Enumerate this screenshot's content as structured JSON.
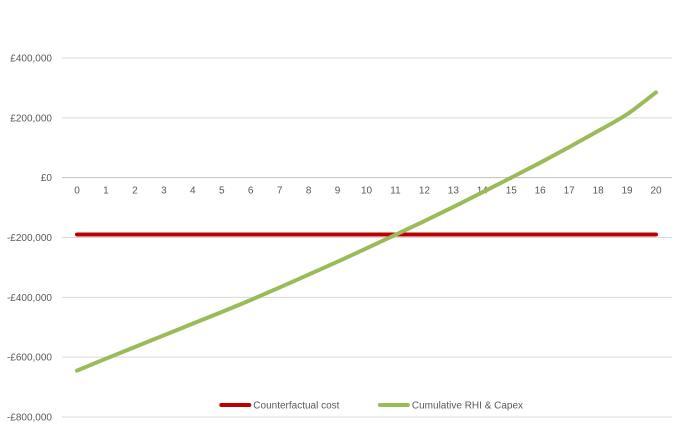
{
  "chart_data": {
    "type": "line",
    "title": "",
    "xlabel": "",
    "ylabel": "",
    "x": [
      0,
      1,
      2,
      3,
      4,
      5,
      6,
      7,
      8,
      9,
      10,
      11,
      12,
      13,
      14,
      15,
      16,
      17,
      18,
      19,
      20
    ],
    "x_tick_labels": [
      "0",
      "1",
      "2",
      "3",
      "4",
      "5",
      "6",
      "7",
      "8",
      "9",
      "10",
      "11",
      "12",
      "13",
      "14",
      "15",
      "16",
      "17",
      "18",
      "19",
      "20"
    ],
    "ylim": [
      -800000,
      400000
    ],
    "y_ticks": [
      400000,
      200000,
      0,
      -200000,
      -400000,
      -600000,
      -800000
    ],
    "y_tick_labels": [
      "£400,000",
      "£200,000",
      "£0",
      "-£200,000",
      "-£400,000",
      "-£600,000",
      "-£800,000"
    ],
    "grid": "horizontal",
    "legend_position": "bottom",
    "series": [
      {
        "name": "Counterfactual cost",
        "color": "#c00000",
        "values": [
          -190000,
          -190000,
          -190000,
          -190000,
          -190000,
          -190000,
          -190000,
          -190000,
          -190000,
          -190000,
          -190000,
          -190000,
          -190000,
          -190000,
          -190000,
          -190000,
          -190000,
          -190000,
          -190000,
          -190000,
          -190000
        ]
      },
      {
        "name": "Cumulative RHI & Capex",
        "color": "#9bbb59",
        "values": [
          -645000,
          -605000,
          -566000,
          -527000,
          -488000,
          -449000,
          -409000,
          -367000,
          -324000,
          -281000,
          -236000,
          -191000,
          -145000,
          -98000,
          -49000,
          0,
          50000,
          102000,
          156000,
          212000,
          285000
        ]
      }
    ]
  }
}
